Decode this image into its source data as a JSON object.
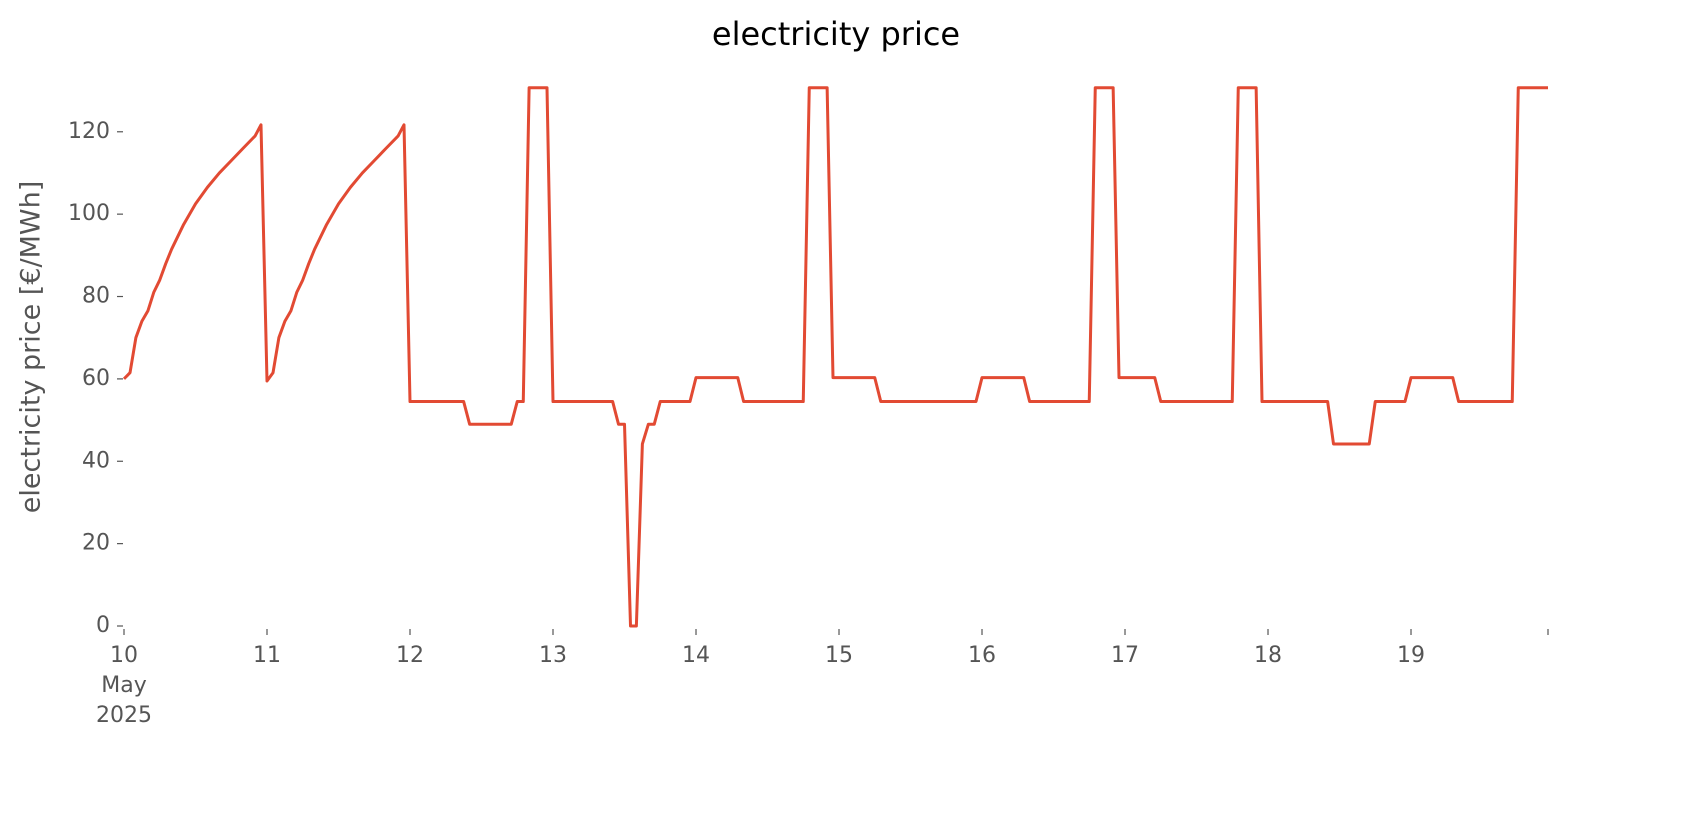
{
  "chart_data": {
    "type": "line",
    "title": "electricity price",
    "y_label": "electricity price [€/MWh]",
    "x": [
      10.0,
      10.042,
      10.083,
      10.125,
      10.167,
      10.208,
      10.25,
      10.292,
      10.333,
      10.417,
      10.5,
      10.583,
      10.667,
      10.75,
      10.833,
      10.917,
      10.958,
      11.0,
      11.042,
      11.083,
      11.125,
      11.167,
      11.208,
      11.25,
      11.292,
      11.333,
      11.417,
      11.5,
      11.583,
      11.667,
      11.75,
      11.833,
      11.917,
      11.958,
      12.0,
      12.375,
      12.417,
      12.708,
      12.75,
      12.792,
      12.833,
      12.958,
      13.0,
      13.417,
      13.458,
      13.5,
      13.542,
      13.583,
      13.625,
      13.667,
      13.708,
      13.75,
      13.958,
      14.0,
      14.292,
      14.333,
      14.75,
      14.792,
      14.917,
      14.958,
      15.25,
      15.292,
      15.958,
      16.0,
      16.292,
      16.333,
      16.75,
      16.792,
      16.917,
      16.958,
      17.208,
      17.25,
      17.75,
      17.792,
      17.917,
      17.958,
      18.417,
      18.458,
      18.708,
      18.75,
      18.958,
      19.0,
      19.292,
      19.333,
      19.708,
      19.75,
      19.958
    ],
    "series": [
      {
        "name": "electricity price",
        "color": "#e24a33",
        "values": [
          60,
          61.5,
          70,
          74,
          76.5,
          81,
          84,
          88,
          91.5,
          97.5,
          102.5,
          106.5,
          110,
          113,
          116,
          119,
          121.7,
          59.5,
          61.5,
          70,
          74,
          76.5,
          81,
          84,
          88,
          91.5,
          97.5,
          102.5,
          106.5,
          110,
          113,
          116,
          119,
          121.7,
          54.5,
          54.5,
          49,
          49,
          54.5,
          54.5,
          130.7,
          130.7,
          54.5,
          54.5,
          49,
          49,
          0,
          0,
          44.2,
          49,
          49,
          54.5,
          54.5,
          60.3,
          60.3,
          54.5,
          54.5,
          130.7,
          130.7,
          60.3,
          60.3,
          54.5,
          54.5,
          60.3,
          60.3,
          54.5,
          54.5,
          130.7,
          130.7,
          60.3,
          60.3,
          54.5,
          54.5,
          130.7,
          130.7,
          54.5,
          54.5,
          44.2,
          44.2,
          54.5,
          54.5,
          60.3,
          60.3,
          54.5,
          54.5,
          130.7,
          130.7
        ]
      }
    ],
    "xlim": [
      10,
      19.958
    ],
    "xticks": [
      {
        "value": 10,
        "label": "10\nMay\n2025"
      },
      11,
      12,
      13,
      14,
      15,
      16,
      17,
      18,
      19
    ],
    "ylim": [
      0,
      135
    ],
    "yticks": [
      0,
      20,
      40,
      60,
      80,
      100,
      120
    ],
    "grid": false
  }
}
